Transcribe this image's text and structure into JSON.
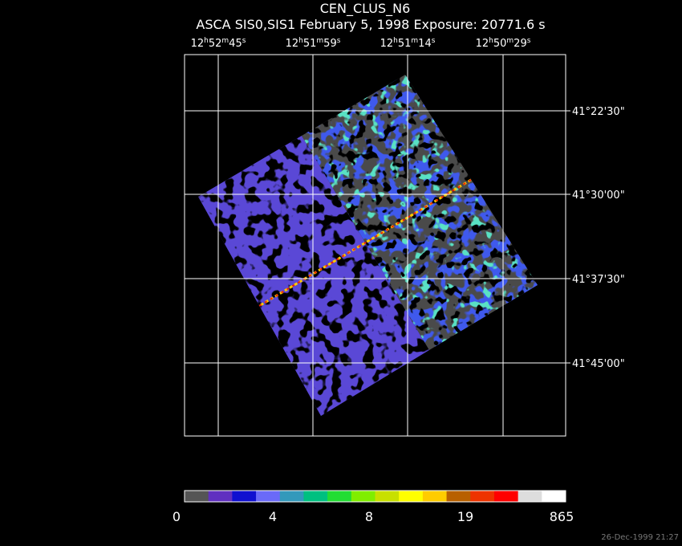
{
  "header": {
    "title": "CEN_CLUS_N6",
    "subtitle": "ASCA SIS0,SIS1 February 5, 1998 Exposure: 20771.6 s"
  },
  "ra_labels": [
    [
      "12",
      "h",
      "52",
      "m",
      "45",
      "s"
    ],
    [
      "12",
      "h",
      "51",
      "m",
      "59",
      "s"
    ],
    [
      "12",
      "h",
      "51",
      "m",
      "14",
      "s"
    ],
    [
      "12",
      "h",
      "50",
      "m",
      "29",
      "s"
    ]
  ],
  "dec_labels": [
    "41°22'30\"",
    "41°30'00\"",
    "41°37'30\"",
    "41°45'00\""
  ],
  "colorbar": {
    "colors": [
      "#555555",
      "#6030c0",
      "#1010d0",
      "#6a6af8",
      "#3399bb",
      "#00c080",
      "#22dd33",
      "#80ee00",
      "#c8e000",
      "#ffff00",
      "#ffcc00",
      "#b86000",
      "#ee3300",
      "#ff0000",
      "#dddddd",
      "#ffffff"
    ],
    "labels": [
      "0",
      "4",
      "8",
      "19",
      "865"
    ]
  },
  "footer": {
    "timestamp": "26-Dec-1999 21:27"
  }
}
